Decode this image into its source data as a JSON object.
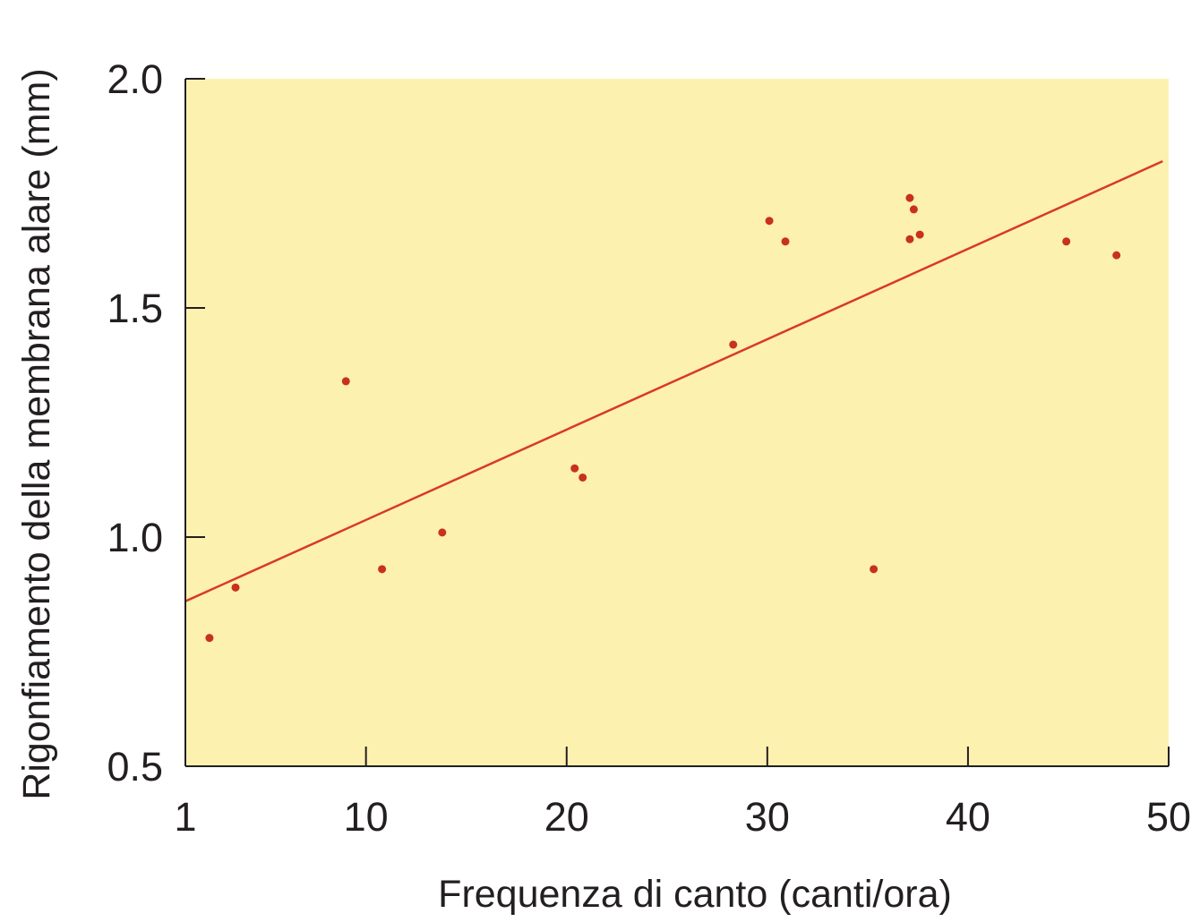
{
  "chart_data": {
    "type": "scatter",
    "title": "",
    "xlabel": "Frequenza di canto (canti/ora)",
    "ylabel": "Rigonfiamento della membrana alare (mm)",
    "xlim": [
      1,
      50
    ],
    "ylim": [
      0.5,
      2.0
    ],
    "x_ticks": [
      1,
      10,
      20,
      30,
      40,
      50
    ],
    "x_tick_labels": [
      "1",
      "10",
      "20",
      "30",
      "40",
      "50"
    ],
    "y_ticks": [
      0.5,
      1.0,
      1.5,
      2.0
    ],
    "y_tick_labels": [
      "0.5",
      "1.0",
      "1.5",
      "2.0"
    ],
    "grid": false,
    "colors": {
      "plot_background": "#fdf1b0",
      "points": "#c8311e",
      "trend_line": "#d93a24",
      "axis": "#231f20"
    },
    "series": [
      {
        "points": [
          {
            "x": 2.2,
            "y": 0.78
          },
          {
            "x": 3.5,
            "y": 0.89
          },
          {
            "x": 9.0,
            "y": 1.34
          },
          {
            "x": 10.8,
            "y": 0.93
          },
          {
            "x": 13.8,
            "y": 1.01
          },
          {
            "x": 20.4,
            "y": 1.15
          },
          {
            "x": 20.8,
            "y": 1.13
          },
          {
            "x": 28.3,
            "y": 1.42
          },
          {
            "x": 30.1,
            "y": 1.69
          },
          {
            "x": 30.9,
            "y": 1.645
          },
          {
            "x": 35.3,
            "y": 0.93
          },
          {
            "x": 37.1,
            "y": 1.74
          },
          {
            "x": 37.3,
            "y": 1.715
          },
          {
            "x": 37.1,
            "y": 1.65
          },
          {
            "x": 37.6,
            "y": 1.66
          },
          {
            "x": 44.9,
            "y": 1.645
          },
          {
            "x": 47.4,
            "y": 1.615
          }
        ]
      }
    ],
    "trend_line": {
      "x": [
        1,
        49.7
      ],
      "y": [
        0.86,
        1.82
      ]
    }
  }
}
